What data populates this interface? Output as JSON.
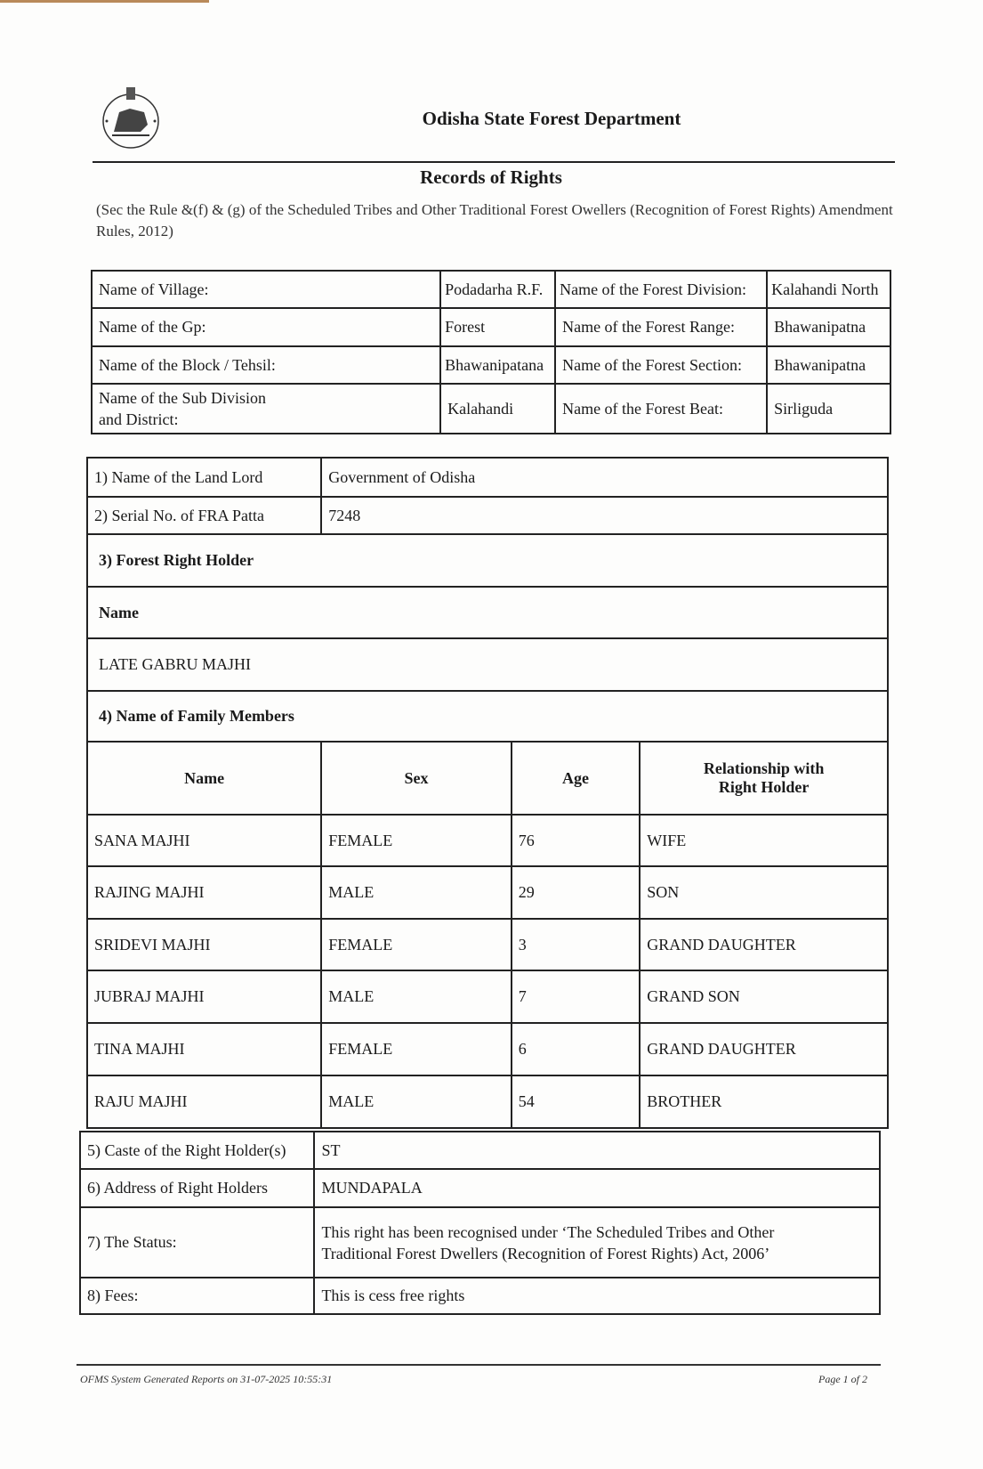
{
  "header": {
    "department": "Odisha State Forest Department",
    "title": "Records of Rights",
    "subtitle": "(Sec the Rule &(f) & (g) of the Scheduled Tribes and Other Traditional Forest Owellers (Recognition of Forest Rights) Amendment Rules, 2012)"
  },
  "location": [
    {
      "label": "Name of Village:",
      "value": "Podadarha R.F.",
      "label2": "Name of the Forest Division:",
      "value2": "Kalahandi North"
    },
    {
      "label": "Name of the Gp:",
      "value": "Forest",
      "label2": "Name of the Forest Range:",
      "value2": "Bhawanipatna"
    },
    {
      "label": "Name of the Block / Tehsil:",
      "value": "Bhawanipatana",
      "label2": "Name of the Forest Section:",
      "value2": "Bhawanipatna"
    },
    {
      "label": "Name of the Sub Division and District:",
      "value": "Kalahandi",
      "label2": "Name of the Forest Beat:",
      "value2": "Sirliguda"
    }
  ],
  "record": {
    "landlord_label": "1) Name of the Land Lord",
    "landlord": "Government of Odisha",
    "patta_label": "2) Serial No. of FRA Patta",
    "patta": "7248",
    "holder_heading": "3) Forest Right Holder",
    "name_heading": "Name",
    "holder_name": "LATE GABRU MAJHI",
    "family_heading": "4) Name of Family Members"
  },
  "family": {
    "columns": [
      "Name",
      "Sex",
      "Age",
      "Relationship with Right Holder"
    ],
    "rows": [
      [
        "SANA MAJHI",
        "FEMALE",
        "76",
        "WIFE"
      ],
      [
        "RAJING MAJHI",
        "MALE",
        "29",
        "SON"
      ],
      [
        "SRIDEVI MAJHI",
        "FEMALE",
        "3",
        "GRAND DAUGHTER"
      ],
      [
        "JUBRAJ MAJHI",
        "MALE",
        "7",
        "GRAND SON"
      ],
      [
        "TINA MAJHI",
        "FEMALE",
        "6",
        "GRAND DAUGHTER"
      ],
      [
        "RAJU MAJHI",
        "MALE",
        "54",
        "BROTHER"
      ]
    ]
  },
  "details": [
    {
      "label": "5) Caste of the Right Holder(s)",
      "value": "ST"
    },
    {
      "label": "6) Address of Right Holders",
      "value": "MUNDAPALA"
    },
    {
      "label": "7) The Status:",
      "value": "This right has been recognised under ‘The Scheduled Tribes and Other Traditional Forest Dwellers (Recognition of Forest Rights) Act, 2006’"
    },
    {
      "label": "8) Fees:",
      "value": "This is cess free rights"
    }
  ],
  "footer": {
    "generated": "OFMS System Generated Reports on 31-07-2025 10:55:31",
    "page": "Page 1 of 2"
  }
}
